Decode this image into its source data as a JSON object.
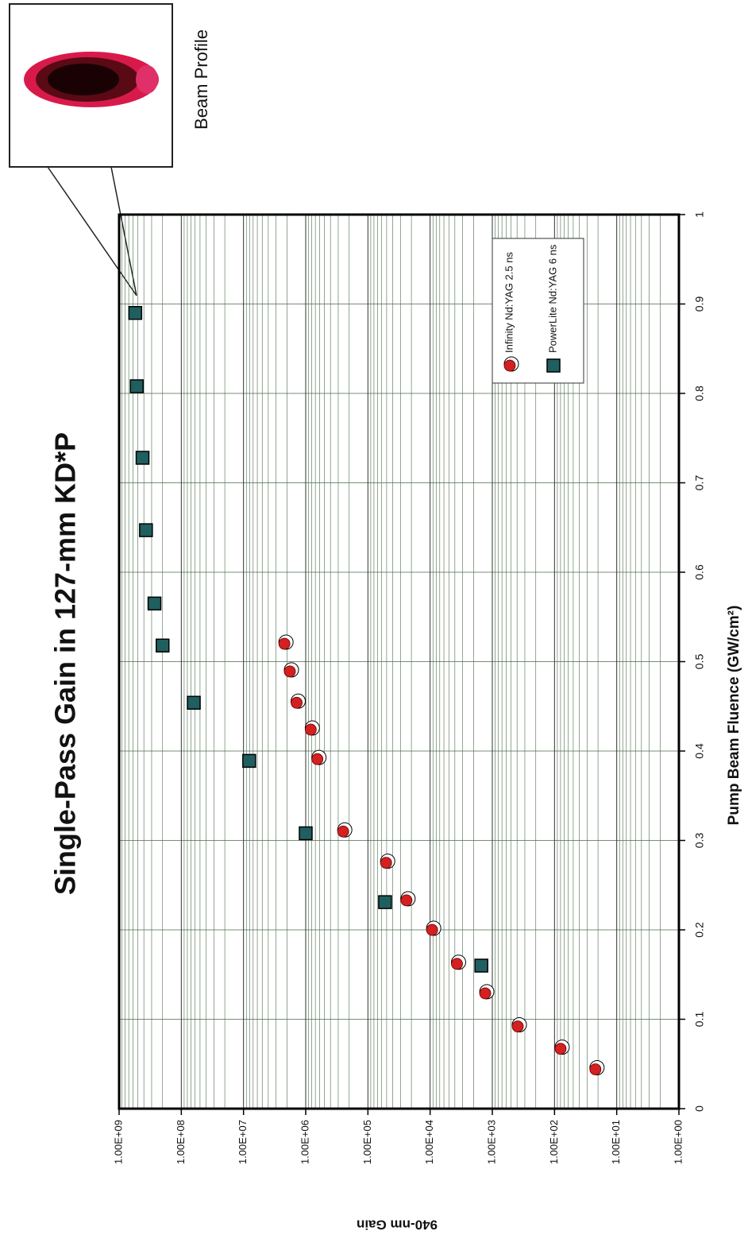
{
  "chart_data": {
    "type": "scatter",
    "title": "Single-Pass Gain in 127-mm KD*P",
    "x_label": "Pump Beam Fluence (GW/cm²)",
    "y_label": "940-nm Gain",
    "annotation": "Beam Profile",
    "log_y": true,
    "grid": true,
    "legend": "lower right",
    "xlim": [
      0,
      1
    ],
    "xticks": [
      0,
      0.1,
      0.2,
      0.3,
      0.4,
      0.5,
      0.6,
      0.7,
      0.8,
      0.9,
      1
    ],
    "ylim": [
      1,
      1000000000
    ],
    "yticks": [
      {
        "value": 1,
        "label": "1.00E+00"
      },
      {
        "value": 10,
        "label": "1.00E+01"
      },
      {
        "value": 100,
        "label": "1.00E+02"
      },
      {
        "value": 1000,
        "label": "1.00E+03"
      },
      {
        "value": 10000,
        "label": "1.00E+04"
      },
      {
        "value": 100000,
        "label": "1.00E+05"
      },
      {
        "value": 1000000,
        "label": "1.00E+06"
      },
      {
        "value": 10000000,
        "label": "1.00E+07"
      },
      {
        "value": 100000000,
        "label": "1.00E+08"
      },
      {
        "value": 1000000000,
        "label": "1.00E+09"
      }
    ],
    "series": [
      {
        "name": "Infinity Nd:YAG 2.5 ns",
        "color": "#d42020",
        "marker": "circle",
        "x": [
          0.044,
          0.067,
          0.092,
          0.129,
          0.162,
          0.2,
          0.233,
          0.275,
          0.31,
          0.391,
          0.424,
          0.454,
          0.489,
          0.52
        ],
        "values": [
          22,
          80,
          390,
          1300,
          3700,
          9300,
          24000,
          51000,
          250000,
          650000,
          830000,
          1400000,
          1800000,
          2200000
        ]
      },
      {
        "name": "PowerLite Nd:YAG 6 ns",
        "color": "#1f5f5f",
        "marker": "square",
        "x": [
          0.16,
          0.231,
          0.308,
          0.389,
          0.454,
          0.518,
          0.565,
          0.647,
          0.728,
          0.808,
          0.89
        ],
        "values": [
          1500,
          53000,
          1000000,
          8100000,
          63000000,
          200000000,
          270000000,
          370000000,
          420000000,
          520000000,
          550000000
        ]
      }
    ]
  }
}
